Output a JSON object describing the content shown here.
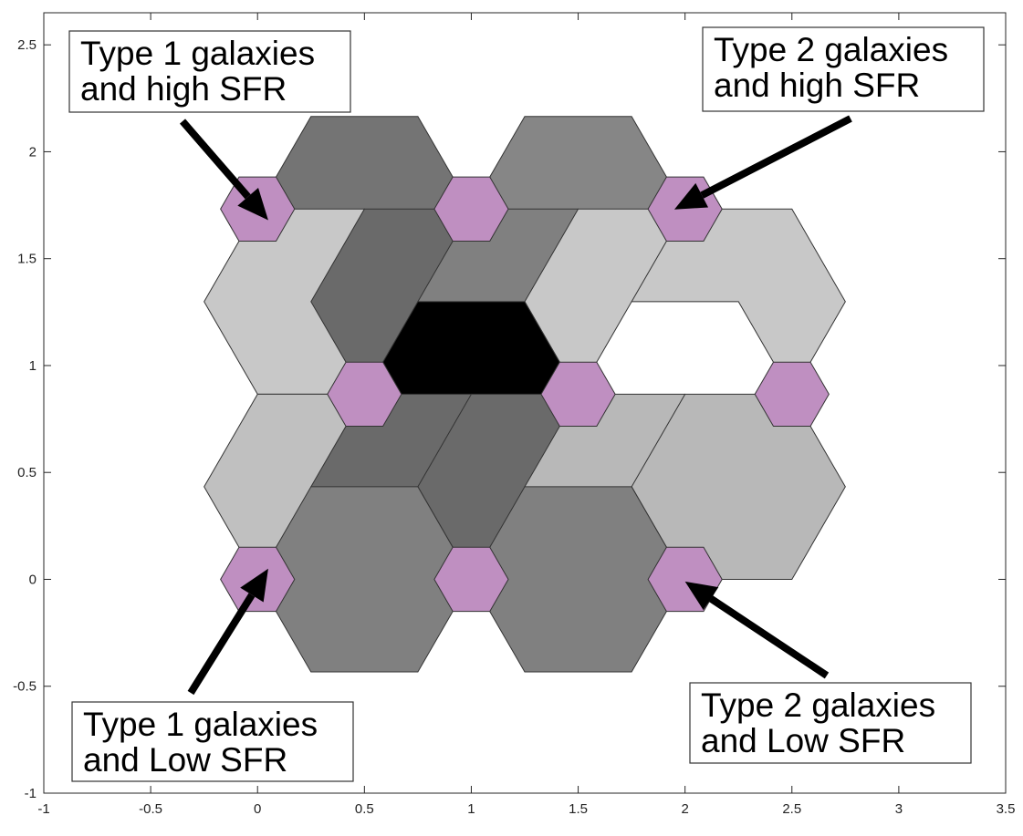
{
  "chart_data": {
    "type": "hexagonal-grid",
    "title": "",
    "xlabel": "",
    "ylabel": "",
    "xlim": [
      -1,
      3.5
    ],
    "ylim": [
      -1,
      2.65
    ],
    "x_ticks": [
      -1,
      -0.5,
      0,
      0.5,
      1,
      1.5,
      2,
      2.5,
      3,
      3.5
    ],
    "y_ticks": [
      -1,
      -0.5,
      0,
      0.5,
      1,
      1.5,
      2,
      2.5
    ],
    "x_tick_labels": [
      "-1",
      "-0.5",
      "0",
      "0.5",
      "1",
      "1.5",
      "2",
      "2.5",
      "3",
      "3.5"
    ],
    "y_tick_labels": [
      "-1",
      "-0.5",
      "0",
      "0.5",
      "1",
      "1.5",
      "2",
      "2.5"
    ],
    "grid": false,
    "colors": {
      "highlight": "#bf8fc1",
      "edge": "#333333"
    },
    "large_hexagons": [
      {
        "x": 0.5,
        "y": 1.732,
        "color": "#747474"
      },
      {
        "x": 1.5,
        "y": 1.732,
        "color": "#868686"
      },
      {
        "x": 0.25,
        "y": 1.299,
        "color": "#c8c8c8"
      },
      {
        "x": 0.75,
        "y": 1.299,
        "color": "#6a6a6a"
      },
      {
        "x": 1.25,
        "y": 1.299,
        "color": "#808080"
      },
      {
        "x": 1.75,
        "y": 1.299,
        "color": "#c8c8c8"
      },
      {
        "x": 2.25,
        "y": 1.299,
        "color": "#c8c8c8"
      },
      {
        "x": 1.0,
        "y": 0.866,
        "color": "#000000"
      },
      {
        "x": 2.0,
        "y": 0.866,
        "color": "#ffffff"
      },
      {
        "x": 0.25,
        "y": 0.433,
        "color": "#c0c0c0"
      },
      {
        "x": 0.75,
        "y": 0.433,
        "color": "#6a6a6a"
      },
      {
        "x": 1.25,
        "y": 0.433,
        "color": "#6a6a6a"
      },
      {
        "x": 1.75,
        "y": 0.433,
        "color": "#b8b8b8"
      },
      {
        "x": 2.25,
        "y": 0.433,
        "color": "#b8b8b8"
      },
      {
        "x": 0.5,
        "y": 0.0,
        "color": "#808080"
      },
      {
        "x": 1.5,
        "y": 0.0,
        "color": "#808080"
      }
    ],
    "small_hexagons": [
      {
        "x": 0.0,
        "y": 1.732
      },
      {
        "x": 1.0,
        "y": 1.732
      },
      {
        "x": 2.0,
        "y": 1.732
      },
      {
        "x": 0.5,
        "y": 0.866
      },
      {
        "x": 1.5,
        "y": 0.866
      },
      {
        "x": 2.5,
        "y": 0.866
      },
      {
        "x": 0.0,
        "y": 0.0
      },
      {
        "x": 1.0,
        "y": 0.0
      },
      {
        "x": 2.0,
        "y": 0.0
      }
    ],
    "annotations": [
      {
        "lines": [
          "Type 1 galaxies",
          "and high SFR"
        ],
        "target": [
          0.05,
          1.68
        ],
        "anchor": "top-left"
      },
      {
        "lines": [
          "Type 2 galaxies",
          "and high SFR"
        ],
        "target": [
          1.95,
          1.73
        ],
        "anchor": "top-right"
      },
      {
        "lines": [
          "Type 1 galaxies",
          "and Low SFR"
        ],
        "target": [
          0.05,
          0.05
        ],
        "anchor": "bottom-left"
      },
      {
        "lines": [
          "Type 2 galaxies",
          "and Low SFR"
        ],
        "target": [
          2.0,
          -0.01
        ],
        "anchor": "bottom-right"
      }
    ]
  }
}
